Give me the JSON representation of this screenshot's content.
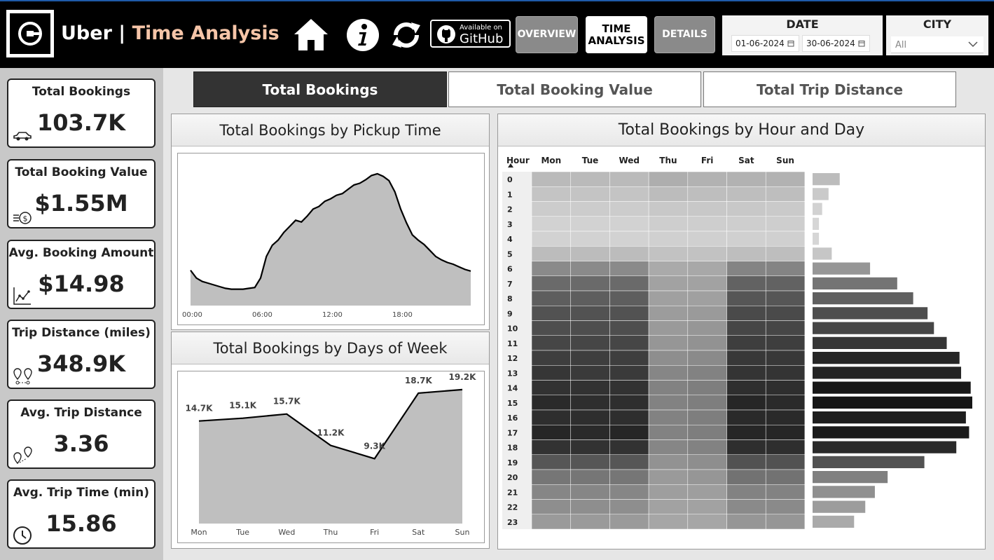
{
  "header": {
    "brand": "Uber",
    "separator": " | ",
    "page_title": "Time Analysis",
    "icons": [
      "home-icon",
      "info-icon",
      "refresh-icon",
      "github-icon"
    ],
    "github": {
      "line1": "Available on",
      "line2": "GitHub"
    },
    "nav": {
      "overview": "OVERVIEW",
      "time_line1": "TIME",
      "time_line2": "ANALYSIS",
      "details": "DETAILS"
    },
    "date": {
      "label": "DATE",
      "start": "01-06-2024",
      "end": "30-06-2024"
    },
    "city": {
      "label": "CITY",
      "selected": "All"
    }
  },
  "kpis": [
    {
      "label": "Total Bookings",
      "value": "103.7K",
      "icon": "car-icon"
    },
    {
      "label": "Total Booking Value",
      "value": "$1.55M",
      "icon": "money-icon"
    },
    {
      "label": "Avg. Booking Amount",
      "value": "$14.98",
      "icon": "trend-chart-icon"
    },
    {
      "label": "Trip Distance (miles)",
      "value": "348.9K",
      "icon": "route-pins-icon"
    },
    {
      "label": "Avg. Trip Distance",
      "value": "3.36",
      "icon": "route-pins-icon"
    },
    {
      "label": "Avg. Trip Time (min)",
      "value": "15.86",
      "icon": "clock-icon"
    }
  ],
  "tabs": [
    "Total Bookings",
    "Total Booking Value",
    "Total Trip Distance"
  ],
  "colors": {
    "accent": "#f6c5a8",
    "area_fill": "#bfbfbf",
    "line": "#000000"
  },
  "chart_data": [
    {
      "type": "area",
      "title": "Total Bookings by Pickup Time",
      "x_ticks": [
        "00:00",
        "06:00",
        "12:00",
        "18:00"
      ],
      "x_range_hours": [
        0,
        24
      ],
      "x_hours": [
        0,
        0.5,
        1,
        1.5,
        2,
        2.5,
        3,
        3.5,
        4,
        4.5,
        5,
        5.5,
        6,
        6.5,
        7,
        7.5,
        8,
        8.5,
        9,
        9.5,
        10,
        10.5,
        11,
        11.5,
        12,
        12.5,
        13,
        13.5,
        14,
        14.5,
        15,
        15.5,
        16,
        16.5,
        17,
        17.5,
        18,
        18.5,
        19,
        19.5,
        20,
        20.5,
        21,
        21.5,
        22,
        22.5,
        23,
        23.5,
        24
      ],
      "values": [
        41,
        32,
        28,
        26,
        24,
        22,
        20,
        19,
        19,
        19,
        20,
        21,
        32,
        57,
        70,
        76,
        85,
        92,
        99,
        97,
        104,
        112,
        115,
        121,
        124,
        128,
        130,
        135,
        140,
        142,
        146,
        151,
        153,
        150,
        145,
        132,
        112,
        96,
        82,
        76,
        71,
        64,
        57,
        53,
        50,
        48,
        45,
        42,
        40
      ],
      "y_range": [
        0,
        170
      ]
    },
    {
      "type": "area",
      "title": "Total Bookings by Days of Week",
      "categories": [
        "Mon",
        "Tue",
        "Wed",
        "Thu",
        "Fri",
        "Sat",
        "Sun"
      ],
      "values": [
        14.7,
        15.1,
        15.7,
        11.2,
        9.3,
        18.7,
        19.2
      ],
      "data_labels": [
        "14.7K",
        "15.1K",
        "15.7K",
        "11.2K",
        "9.3K",
        "18.7K",
        "19.2K"
      ],
      "unit": "K",
      "y_range": [
        0,
        21
      ]
    },
    {
      "type": "heatmap",
      "title": "Total Bookings by Hour and Day",
      "row_header": "Hour",
      "columns": [
        "Mon",
        "Tue",
        "Wed",
        "Thu",
        "Fri",
        "Sat",
        "Sun"
      ],
      "rows": [
        "0",
        "1",
        "2",
        "3",
        "4",
        "5",
        "6",
        "7",
        "8",
        "9",
        "10",
        "11",
        "12",
        "13",
        "14",
        "15",
        "16",
        "17",
        "18",
        "19",
        "20",
        "21",
        "22",
        "23"
      ],
      "intensity": [
        [
          0.18,
          0.18,
          0.18,
          0.24,
          0.22,
          0.22,
          0.22
        ],
        [
          0.13,
          0.13,
          0.13,
          0.17,
          0.16,
          0.16,
          0.16
        ],
        [
          0.09,
          0.09,
          0.09,
          0.11,
          0.11,
          0.11,
          0.1
        ],
        [
          0.06,
          0.06,
          0.06,
          0.08,
          0.08,
          0.08,
          0.08
        ],
        [
          0.06,
          0.06,
          0.06,
          0.07,
          0.07,
          0.07,
          0.07
        ],
        [
          0.17,
          0.17,
          0.17,
          0.14,
          0.14,
          0.16,
          0.16
        ],
        [
          0.42,
          0.42,
          0.42,
          0.26,
          0.27,
          0.45,
          0.45
        ],
        [
          0.58,
          0.58,
          0.58,
          0.3,
          0.3,
          0.62,
          0.62
        ],
        [
          0.64,
          0.64,
          0.64,
          0.31,
          0.31,
          0.68,
          0.68
        ],
        [
          0.7,
          0.7,
          0.7,
          0.33,
          0.34,
          0.74,
          0.74
        ],
        [
          0.72,
          0.72,
          0.72,
          0.34,
          0.36,
          0.76,
          0.76
        ],
        [
          0.76,
          0.76,
          0.76,
          0.36,
          0.38,
          0.8,
          0.8
        ],
        [
          0.8,
          0.8,
          0.8,
          0.4,
          0.42,
          0.83,
          0.83
        ],
        [
          0.84,
          0.82,
          0.82,
          0.44,
          0.46,
          0.85,
          0.85
        ],
        [
          0.86,
          0.86,
          0.86,
          0.46,
          0.48,
          0.88,
          0.88
        ],
        [
          0.9,
          0.88,
          0.88,
          0.46,
          0.48,
          0.92,
          0.9
        ],
        [
          0.88,
          0.88,
          0.88,
          0.46,
          0.48,
          0.9,
          0.9
        ],
        [
          0.92,
          0.9,
          0.92,
          0.46,
          0.48,
          0.92,
          0.92
        ],
        [
          0.86,
          0.86,
          0.86,
          0.44,
          0.46,
          0.88,
          0.88
        ],
        [
          0.68,
          0.68,
          0.68,
          0.38,
          0.4,
          0.7,
          0.7
        ],
        [
          0.52,
          0.52,
          0.52,
          0.34,
          0.36,
          0.54,
          0.54
        ],
        [
          0.44,
          0.44,
          0.44,
          0.32,
          0.32,
          0.46,
          0.46
        ],
        [
          0.4,
          0.4,
          0.4,
          0.3,
          0.3,
          0.42,
          0.42
        ],
        [
          0.34,
          0.34,
          0.34,
          0.28,
          0.28,
          0.36,
          0.36
        ]
      ],
      "hour_totals_relative": [
        0.17,
        0.1,
        0.06,
        0.04,
        0.04,
        0.12,
        0.36,
        0.53,
        0.63,
        0.72,
        0.76,
        0.84,
        0.92,
        0.93,
        0.99,
        1.0,
        0.96,
        0.98,
        0.9,
        0.7,
        0.47,
        0.39,
        0.33,
        0.26
      ]
    }
  ]
}
